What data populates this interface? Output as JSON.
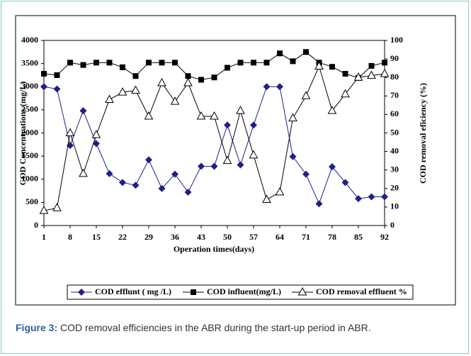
{
  "chart_data": {
    "type": "line",
    "x": [
      1,
      4.5,
      8,
      11.5,
      15,
      18.5,
      22,
      25.5,
      29,
      32.5,
      36,
      39.5,
      43,
      46.5,
      50,
      53.5,
      57,
      60.5,
      64,
      67.5,
      71,
      74.5,
      78,
      81.5,
      85,
      88.5,
      92
    ],
    "xlim": [
      1,
      92
    ],
    "xticks": [
      1,
      8,
      15,
      22,
      29,
      36,
      43,
      50,
      57,
      64,
      71,
      78,
      85,
      92
    ],
    "ylim": [
      0,
      4000
    ],
    "yticks": [
      0,
      500,
      1000,
      1500,
      2000,
      2500,
      3000,
      3500,
      4000
    ],
    "y2lim": [
      0,
      100
    ],
    "y2ticks": [
      0,
      10,
      20,
      30,
      40,
      50,
      60,
      70,
      80,
      90,
      100
    ],
    "xlabel": "Operation times(days)",
    "ylabel": "COD Concentrations (mg/L)",
    "y2label": "COD removal eficiency (%)",
    "legend": "bottom",
    "series": [
      {
        "name": "COD efflunt ( mg /L)",
        "color": "#1f1f8c",
        "marker": "diamond",
        "values": [
          3000,
          2950,
          1730,
          2480,
          1770,
          1120,
          930,
          870,
          1420,
          800,
          1110,
          720,
          1280,
          1280,
          2170,
          1310,
          2170,
          3000,
          3000,
          1490,
          1110,
          470,
          1270,
          930,
          580,
          620,
          620
        ]
      },
      {
        "name": "COD influent(mg/L)",
        "color": "#000000",
        "marker": "square",
        "values": [
          3280,
          3250,
          3520,
          3470,
          3520,
          3520,
          3420,
          3230,
          3520,
          3520,
          3520,
          3230,
          3150,
          3200,
          3410,
          3520,
          3520,
          3520,
          3720,
          3550,
          3750,
          3520,
          3430,
          3280,
          3190,
          3450,
          3520
        ]
      },
      {
        "name": "COD removal effluent %",
        "color": "#000000",
        "marker": "triangle",
        "axis": "y2",
        "values": [
          8,
          9.5,
          50,
          28,
          49,
          68,
          72,
          73,
          59,
          77,
          67,
          77,
          59,
          59,
          35,
          62,
          38,
          14,
          18,
          58,
          70,
          86,
          62,
          71,
          80,
          81,
          82
        ]
      }
    ]
  },
  "caption": {
    "label": "Figure 3:",
    "text": "COD removal efficiencies in the ABR during the start-up period in ABR."
  }
}
